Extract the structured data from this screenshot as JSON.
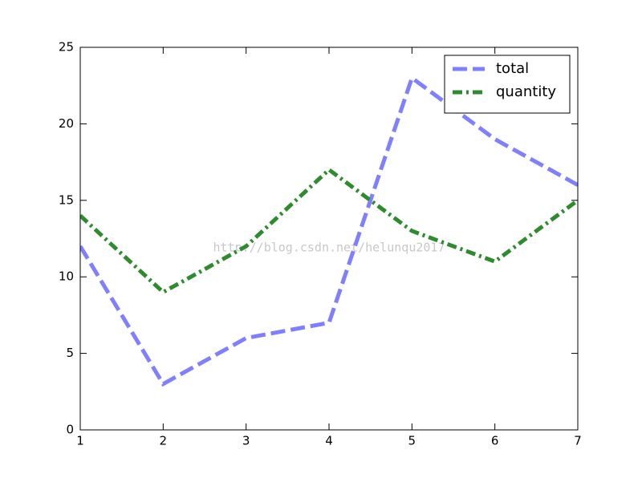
{
  "chart_data": {
    "type": "line",
    "x": [
      1,
      2,
      3,
      4,
      5,
      6,
      7
    ],
    "series": [
      {
        "name": "total",
        "color": "#7f7fff",
        "dash": "dashed",
        "values": [
          12,
          3,
          6,
          7,
          23,
          19,
          16
        ]
      },
      {
        "name": "quantity",
        "color": "#2e8b2e",
        "dash": "dashdot",
        "values": [
          14,
          9,
          12,
          17,
          13,
          11,
          15
        ]
      }
    ],
    "xlim": [
      1,
      7
    ],
    "xticks": [
      1,
      2,
      3,
      4,
      5,
      6,
      7
    ],
    "ylim": [
      0,
      25
    ],
    "yticks": [
      0,
      5,
      10,
      15,
      20,
      25
    ],
    "grid": false,
    "legend": "upper right",
    "watermark": "http://blog.csdn.net/helunqu2017"
  }
}
